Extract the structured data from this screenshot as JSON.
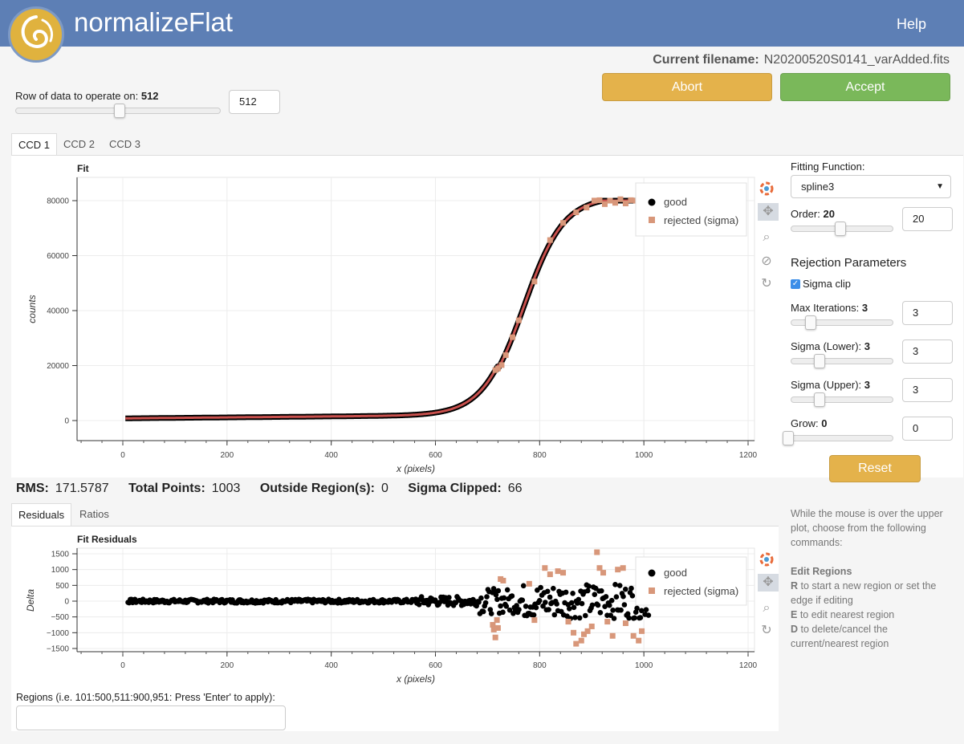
{
  "header": {
    "title": "normalizeFlat",
    "help": "Help"
  },
  "filename": {
    "label": "Current filename:",
    "value": "N20200520S0141_varAdded.fits"
  },
  "actions": {
    "abort": "Abort",
    "accept": "Accept"
  },
  "row_control": {
    "label": "Row of data to operate on:",
    "value": "512",
    "input_value": "512",
    "slider_fraction": 0.51
  },
  "ccd_tabs": [
    "CCD 1",
    "CCD 2",
    "CCD 3"
  ],
  "fit_plot": {
    "title": "Fit",
    "xlabel": "x (pixels)",
    "ylabel": "counts",
    "xticks": [
      "0",
      "200",
      "400",
      "600",
      "800",
      "1000",
      "1200"
    ],
    "yticks": [
      "0",
      "20000",
      "40000",
      "60000",
      "80000"
    ],
    "legend": [
      "good",
      "rejected (sigma)"
    ]
  },
  "stats": {
    "rms_label": "RMS:",
    "rms": "171.5787",
    "total_label": "Total Points:",
    "total": "1003",
    "outside_label": "Outside Region(s):",
    "outside": "0",
    "clipped_label": "Sigma Clipped:",
    "clipped": "66"
  },
  "residual_tabs": [
    "Residuals",
    "Ratios"
  ],
  "residual_plot": {
    "title": "Fit Residuals",
    "xlabel": "x (pixels)",
    "ylabel": "Delta",
    "xticks": [
      "0",
      "200",
      "400",
      "600",
      "800",
      "1000",
      "1200"
    ],
    "yticks": [
      "1500",
      "1000",
      "500",
      "0",
      "−500",
      "−1000",
      "−1500"
    ],
    "legend": [
      "good",
      "rejected (sigma)"
    ]
  },
  "controls": {
    "fitting_label": "Fitting Function:",
    "fitting_value": "spline3",
    "order_label": "Order:",
    "order_value": "20",
    "order_input": "20",
    "order_fraction": 0.45,
    "rejection_title": "Rejection Parameters",
    "sigma_clip_label": "Sigma clip",
    "max_iter_label": "Max Iterations:",
    "max_iter_value": "3",
    "max_iter_input": "3",
    "max_iter_fraction": 0.2,
    "sigma_lower_label": "Sigma (Lower):",
    "sigma_lower_value": "3",
    "sigma_lower_input": "3",
    "sigma_lower_fraction": 0.28,
    "sigma_upper_label": "Sigma (Upper):",
    "sigma_upper_value": "3",
    "sigma_upper_input": "3",
    "sigma_upper_fraction": 0.28,
    "grow_label": "Grow:",
    "grow_value": "0",
    "grow_input": "0",
    "grow_fraction": 0.0,
    "reset": "Reset"
  },
  "help_text": {
    "intro": "While the mouse is over the upper plot, choose from the following commands:",
    "heading": "Edit Regions",
    "r_key": "R",
    "r_text": " to start a new region or set the edge if editing",
    "e_key": "E",
    "e_text": " to edit nearest region",
    "d_key": "D",
    "d_text": " to delete/cancel the current/nearest region"
  },
  "regions": {
    "label": "Regions (i.e. 101:500,511:900,951: Press 'Enter' to apply):",
    "value": ""
  },
  "colors": {
    "header": "#5d7fb5",
    "good": "#000000",
    "rejected": "#d8977a",
    "fit_line": "#c8504d",
    "abort": "#e4b24b",
    "accept": "#7ab85a"
  }
}
